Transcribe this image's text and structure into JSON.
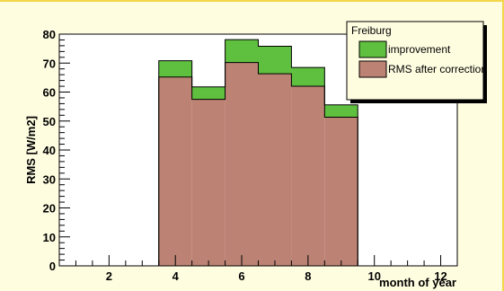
{
  "chart_data": {
    "type": "bar",
    "stacked": true,
    "categories": [
      4,
      5,
      6,
      7,
      8,
      9
    ],
    "series": [
      {
        "name": "RMS after correction",
        "values": [
          65.2,
          57.5,
          70.2,
          66.3,
          62.0,
          51.3
        ]
      },
      {
        "name": "improvement",
        "values": [
          5.6,
          4.3,
          7.9,
          9.5,
          6.5,
          4.3
        ]
      }
    ],
    "xlabel": "month of year",
    "ylabel": "RMS [W/m2]",
    "xlim": [
      0.5,
      12.5
    ],
    "ylim": [
      0,
      80
    ],
    "xticks": [
      2,
      4,
      6,
      8,
      10,
      12
    ],
    "yticks": [
      0,
      10,
      20,
      30,
      40,
      50,
      60,
      70,
      80
    ],
    "grid": false,
    "legend": {
      "title": "Freiburg",
      "placement": "top-right",
      "entries": [
        {
          "name": "improvement",
          "color": "#5fbf3f"
        },
        {
          "name": "RMS after correction",
          "color": "#bc8375"
        }
      ]
    },
    "colors": {
      "rms": "#bc8375",
      "improvement": "#5fbf3f"
    }
  }
}
